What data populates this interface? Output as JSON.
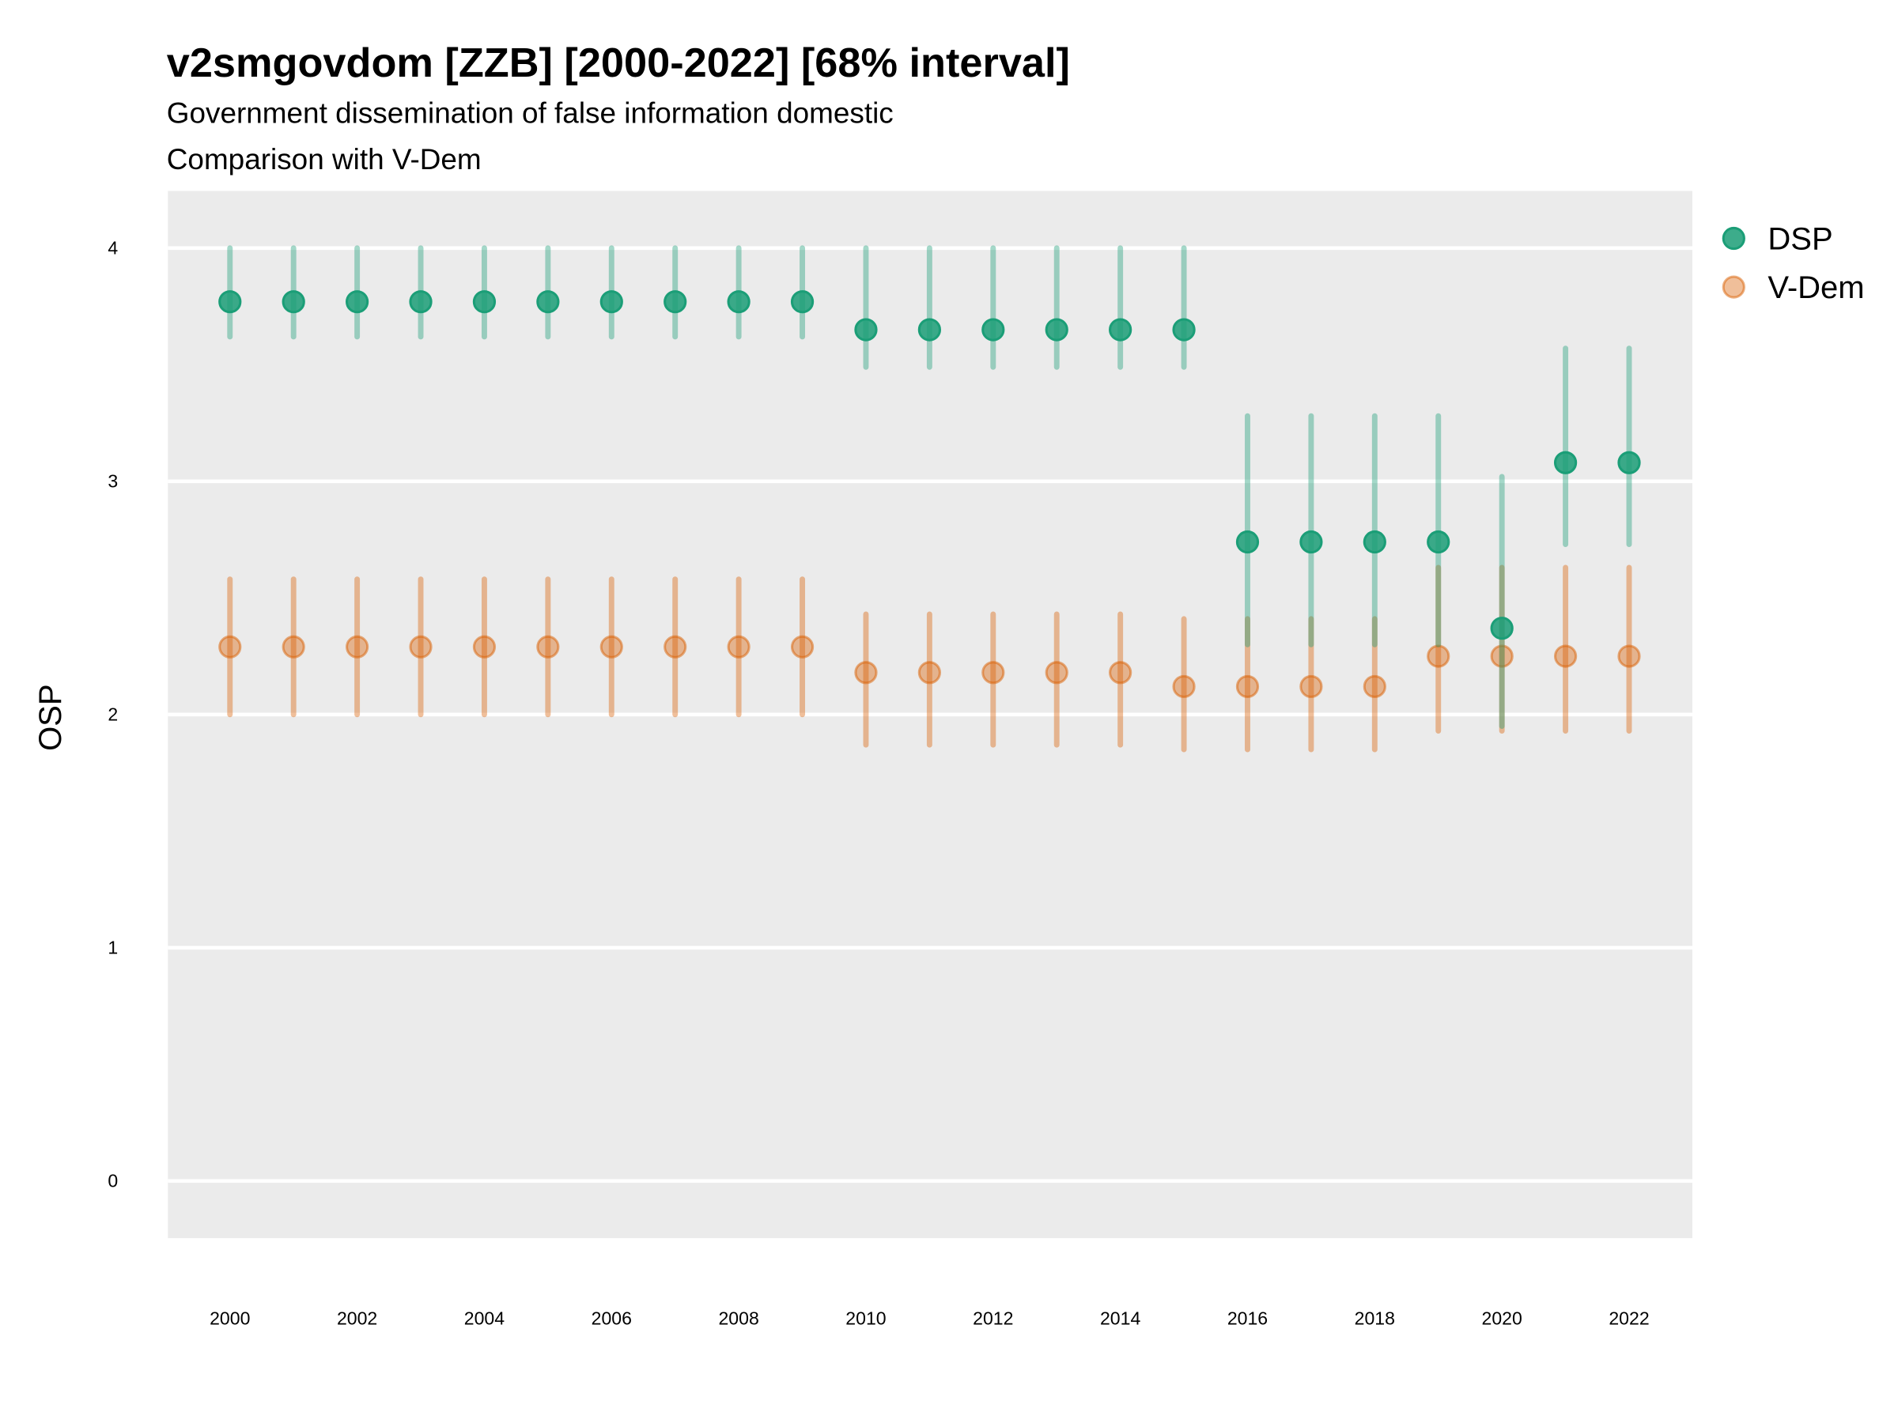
{
  "chart_data": {
    "type": "scatter",
    "title": "v2smgovdom [ZZB] [2000-2022] [68% interval]",
    "subtitle": "Government dissemination of false information domestic",
    "subtitle2": "Comparison with V-Dem",
    "xlabel": "",
    "ylabel": "OSP",
    "xlim": [
      1999,
      2023
    ],
    "ylim": [
      -0.25,
      4.25
    ],
    "x_ticks": [
      "2000",
      "2002",
      "2004",
      "2006",
      "2008",
      "2010",
      "2012",
      "2014",
      "2016",
      "2018",
      "2020",
      "2022"
    ],
    "y_ticks": [
      "0",
      "1",
      "2",
      "3",
      "4"
    ],
    "grid": true,
    "legend_position": "right",
    "x": [
      2000,
      2001,
      2002,
      2003,
      2004,
      2005,
      2006,
      2007,
      2008,
      2009,
      2010,
      2011,
      2012,
      2013,
      2014,
      2015,
      2016,
      2017,
      2018,
      2019,
      2020,
      2021,
      2022
    ],
    "series": [
      {
        "name": "DSP",
        "color": "#1b9e77",
        "values": [
          3.77,
          3.77,
          3.77,
          3.77,
          3.77,
          3.77,
          3.77,
          3.77,
          3.77,
          3.77,
          3.65,
          3.65,
          3.65,
          3.65,
          3.65,
          3.65,
          2.74,
          2.74,
          2.74,
          2.74,
          2.37,
          3.08,
          3.08
        ],
        "lower": [
          3.62,
          3.62,
          3.62,
          3.62,
          3.62,
          3.62,
          3.62,
          3.62,
          3.62,
          3.62,
          3.49,
          3.49,
          3.49,
          3.49,
          3.49,
          3.49,
          2.3,
          2.3,
          2.3,
          2.3,
          1.95,
          2.73,
          2.73
        ],
        "upper": [
          4.0,
          4.0,
          4.0,
          4.0,
          4.0,
          4.0,
          4.0,
          4.0,
          4.0,
          4.0,
          4.0,
          4.0,
          4.0,
          4.0,
          4.0,
          4.0,
          3.28,
          3.28,
          3.28,
          3.28,
          3.02,
          3.57,
          3.57
        ]
      },
      {
        "name": "V-Dem",
        "color": "#d95f02",
        "values": [
          2.29,
          2.29,
          2.29,
          2.29,
          2.29,
          2.29,
          2.29,
          2.29,
          2.29,
          2.29,
          2.18,
          2.18,
          2.18,
          2.18,
          2.18,
          2.12,
          2.12,
          2.12,
          2.12,
          2.25,
          2.25,
          2.25,
          2.25
        ],
        "lower": [
          2.0,
          2.0,
          2.0,
          2.0,
          2.0,
          2.0,
          2.0,
          2.0,
          2.0,
          2.0,
          1.87,
          1.87,
          1.87,
          1.87,
          1.87,
          1.85,
          1.85,
          1.85,
          1.85,
          1.93,
          1.93,
          1.93,
          1.93
        ],
        "upper": [
          2.58,
          2.58,
          2.58,
          2.58,
          2.58,
          2.58,
          2.58,
          2.58,
          2.58,
          2.58,
          2.43,
          2.43,
          2.43,
          2.43,
          2.43,
          2.41,
          2.41,
          2.41,
          2.41,
          2.63,
          2.63,
          2.63,
          2.63
        ]
      }
    ]
  }
}
